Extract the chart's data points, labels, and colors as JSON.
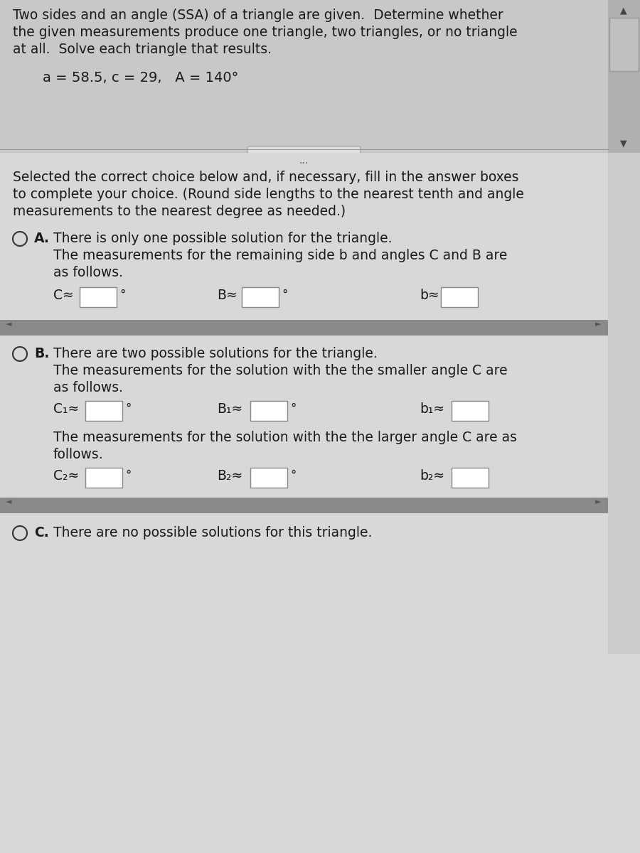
{
  "bg_color_top": "#cccccc",
  "bg_color_main": "#d8d8d8",
  "text_color": "#1a1a1a",
  "scrollbar_bg": "#b8b8b8",
  "scrollbar_slider": "#c0c0c0",
  "scrollbar_dark": "#888888",
  "input_box_color": "#ffffff",
  "input_box_edge": "#888888",
  "scroll_bar_fill": "#909090",
  "title_text_line1": "Two sides and an angle (SSA) of a triangle are given.  Determine whether",
  "title_text_line2": "the given measurements produce one triangle, two triangles, or no triangle",
  "title_text_line3": "at all.  Solve each triangle that results.",
  "given_values": "a = 58.5, c = 29,   A = 140°",
  "instruction_line1": "Selected the correct choice below and, if necessary, fill in the answer boxes",
  "instruction_line2": "to complete your choice. (Round side lengths to the nearest tenth and angle",
  "instruction_line3": "measurements to the nearest degree as needed.)",
  "optA_text1": "There is only one possible solution for the triangle.",
  "optA_text2": "The measurements for the remaining side b and angles C and B are",
  "optA_text3": "as follows.",
  "optB_text1": "There are two possible solutions for the triangle.",
  "optB_text2": "The measurements for the solution with the the smaller angle C are",
  "optB_text3": "as follows.",
  "optB_text4": "The measurements for the solution with the the larger angle C are as",
  "optB_text5": "follows.",
  "optC_text": "There are no possible solutions for this triangle.",
  "dots_text": "..."
}
